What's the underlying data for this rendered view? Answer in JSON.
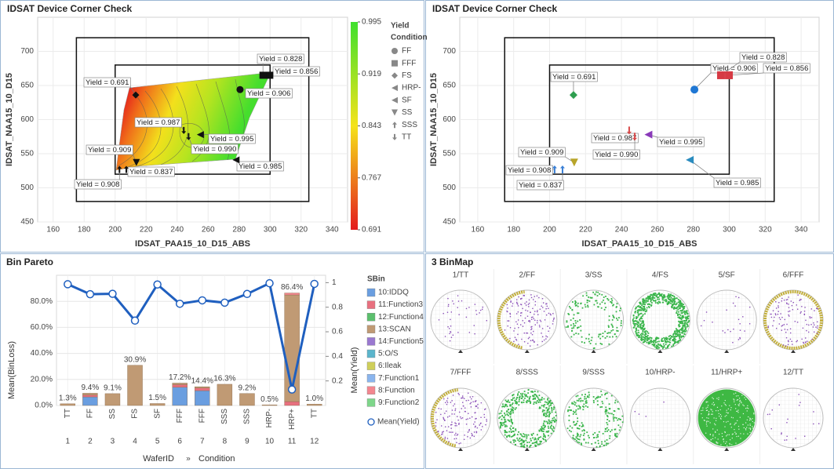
{
  "chart_data": [
    {
      "type": "scatter",
      "title": "IDSAT Device Corner Check",
      "x_label": "IDSAT_PAA15_10_D15_ABS",
      "y_label": "IDSAT_NAA15_10_D15",
      "xlim": [
        150,
        350
      ],
      "xticks": [
        160,
        180,
        200,
        220,
        240,
        260,
        280,
        300,
        320,
        340
      ],
      "ylim": [
        450,
        750
      ],
      "yticks": [
        450,
        500,
        550,
        600,
        650,
        700
      ],
      "grid": true,
      "boxes": [
        {
          "x": [
            175,
            325
          ],
          "y": [
            480,
            720
          ]
        },
        {
          "x": [
            200,
            300
          ],
          "y": [
            520,
            680
          ]
        }
      ],
      "color_title": "Yield",
      "legend_title": "Condition",
      "colorbar": {
        "lim": [
          0.691,
          0.995
        ],
        "ticks": [
          0.995,
          0.919,
          0.843,
          0.767,
          0.691
        ],
        "colors": [
          "#e41a1c",
          "#f5e31a",
          "#3fe02e"
        ]
      },
      "series": [
        {
          "name": "FF",
          "marker": "circle",
          "color": "#1f77d4",
          "x": [
            280.6
          ],
          "values": [
            644
          ],
          "yield": [
            0.906
          ],
          "yield_labels": [
            "Yield = 0.906"
          ]
        },
        {
          "name": "FFF",
          "marker": "square",
          "color": "#d63a44",
          "x": [
            295.4,
            299.8
          ],
          "values": [
            665,
            665
          ],
          "yield": [
            0.828,
            0.856
          ],
          "yield_labels": [
            "Yield = 0.828",
            "Yield = 0.856"
          ]
        },
        {
          "name": "FS",
          "marker": "diamond",
          "color": "#2e9e4f",
          "x": [
            213.3
          ],
          "values": [
            636
          ],
          "yield": [
            0.691
          ],
          "yield_labels": [
            "Yield = 0.691"
          ]
        },
        {
          "name": "HRP-",
          "marker": "triangle-left",
          "color": "#8a3ab9",
          "x": [
            255
          ],
          "values": [
            578
          ],
          "yield": [
            0.995
          ],
          "yield_labels": [
            "Yield = 0.995"
          ]
        },
        {
          "name": "SF",
          "marker": "triangle-left",
          "color": "#2a8cbf",
          "x": [
            278
          ],
          "values": [
            541
          ],
          "yield": [
            0.985
          ],
          "yield_labels": [
            "Yield = 0.985"
          ]
        },
        {
          "name": "SS",
          "marker": "triangle-down",
          "color": "#b8a52a",
          "x": [
            213.7
          ],
          "values": [
            537
          ],
          "yield": [
            0.909
          ],
          "yield_labels": [
            "Yield = 0.909"
          ]
        },
        {
          "name": "SSS",
          "marker": "arrow-up",
          "color": "#3a7fd5",
          "x": [
            202.8,
            207.2
          ],
          "values": [
            527,
            527
          ],
          "yield": [
            0.908,
            0.837
          ],
          "yield_labels": [
            "Yield = 0.908",
            "Yield = 0.837"
          ]
        },
        {
          "name": "TT",
          "marker": "arrow-down",
          "color": "#d84a4a",
          "x": [
            244.3,
            247.4
          ],
          "values": [
            584,
            575
          ],
          "yield": [
            0.987,
            0.99
          ],
          "yield_labels": [
            "Yield = 0.987",
            "Yield = 0.990"
          ]
        }
      ]
    },
    {
      "type": "bar",
      "stacked": true,
      "title": "Bin Pareto",
      "categories": [
        "TT",
        "FF",
        "SS",
        "FS",
        "SF",
        "FFF",
        "FFF",
        "SSS",
        "SSS",
        "HRP-",
        "HRP+",
        "TT"
      ],
      "wafer_ids": [
        "1",
        "2",
        "3",
        "4",
        "5",
        "6",
        "7",
        "8",
        "9",
        "10",
        "11",
        "12"
      ],
      "x_label": "WaferID",
      "x_label_separator": "»",
      "x_label_2": "Condition",
      "y_label": "Mean(BinLoss)",
      "y2_label": "Mean(Yield)",
      "legend_title": "SBin",
      "ylim": [
        0,
        100
      ],
      "yticks": [
        {
          "value": 0,
          "label": "0.0%"
        },
        {
          "value": 20,
          "label": "20.0%"
        },
        {
          "value": 40,
          "label": "40.0%"
        },
        {
          "value": 60,
          "label": "60.0%"
        },
        {
          "value": 80,
          "label": "80.0%"
        }
      ],
      "y2lim": [
        0,
        1.06
      ],
      "y2ticks": [
        0.2,
        0.4,
        0.6,
        0.8,
        1
      ],
      "series": [
        {
          "name": "10:IDDQ",
          "color": "#6a9ee0",
          "values": [
            0,
            6.6,
            0,
            0,
            0,
            14.0,
            11.4,
            0,
            0,
            0,
            0,
            0
          ]
        },
        {
          "name": "11:Function3",
          "color": "#e8707f",
          "values": [
            0,
            1.5,
            0,
            0,
            0,
            2.0,
            2.0,
            0,
            0,
            0,
            3.0,
            0
          ]
        },
        {
          "name": "12:Function4",
          "color": "#5bbf6d",
          "values": [
            0,
            0,
            0,
            0,
            0,
            0,
            0,
            0,
            0,
            0,
            0,
            0
          ]
        },
        {
          "name": "13:SCAN",
          "color": "#c09a74",
          "values": [
            1.3,
            1.3,
            9.1,
            30.9,
            1.5,
            1.2,
            1.0,
            16.3,
            9.2,
            0.5,
            81.9,
            1.0
          ]
        },
        {
          "name": "14:Function5",
          "color": "#9a78d0",
          "values": [
            0,
            0,
            0,
            0,
            0,
            0,
            0,
            0,
            0,
            0,
            0,
            0
          ]
        },
        {
          "name": "5:O/S",
          "color": "#5bb5cc",
          "values": [
            0,
            0,
            0,
            0,
            0,
            0,
            0,
            0,
            0,
            0,
            0,
            0
          ]
        },
        {
          "name": "6:Ileak",
          "color": "#cfcf5a",
          "values": [
            0,
            0,
            0,
            0,
            0,
            0,
            0,
            0,
            0,
            0,
            0,
            0
          ]
        },
        {
          "name": "7:Function1",
          "color": "#8ab5ee",
          "values": [
            0,
            0,
            0,
            0,
            0,
            0,
            0,
            0,
            0,
            0,
            0,
            0
          ]
        },
        {
          "name": "8:Function",
          "color": "#f3868f",
          "values": [
            0,
            0,
            0,
            0,
            0,
            0,
            0,
            0,
            0,
            0,
            1.5,
            0
          ]
        },
        {
          "name": "9:Function2",
          "color": "#7ed68a",
          "values": [
            0,
            0,
            0,
            0,
            0,
            0,
            0,
            0,
            0,
            0,
            0,
            0
          ]
        },
        {
          "name": "Mean(Yield)",
          "type": "line",
          "axis": "y2",
          "color": "#1f5fbf",
          "values": [
            0.987,
            0.906,
            0.909,
            0.691,
            0.985,
            0.828,
            0.856,
            0.837,
            0.908,
            0.995,
            0.13,
            0.99
          ]
        }
      ],
      "totals": {
        "values": [
          1.3,
          9.4,
          9.1,
          30.9,
          1.5,
          17.2,
          14.4,
          16.3,
          9.2,
          0.5,
          86.4,
          1.0
        ],
        "value_labels": [
          "1.3%",
          "9.4%",
          "9.1%",
          "30.9%",
          "1.5%",
          "17.2%",
          "14.4%",
          "16.3%",
          "9.2%",
          "0.5%",
          "86.4%",
          "1.0%"
        ]
      }
    }
  ],
  "binmap": {
    "title": "3 BinMap",
    "wafers": [
      "1/TT",
      "2/FF",
      "3/SS",
      "4/FS",
      "5/SF",
      "6/FFF",
      "7/FFF",
      "8/SSS",
      "9/SSS",
      "10/HRP-",
      "11/HRP+",
      "12/TT"
    ]
  }
}
